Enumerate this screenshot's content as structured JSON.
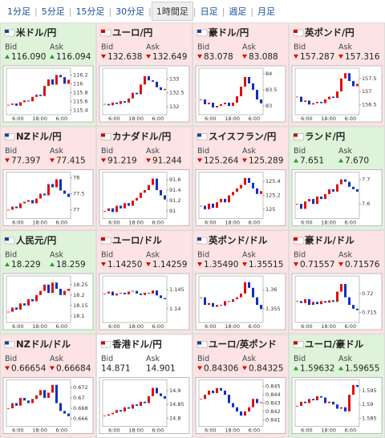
{
  "tabs": {
    "items": [
      "1分足",
      "5分足",
      "15分足",
      "30分足",
      "1時間足",
      "日足",
      "週足",
      "月足"
    ],
    "active": 4
  },
  "labels": {
    "bid": "Bid",
    "ask": "Ask"
  },
  "x_labels": [
    "6:00",
    "18:00",
    "6:00"
  ],
  "cards": [
    {
      "name": "米ドル/円",
      "bid": "116.090",
      "ask": "116.094",
      "dir": "up",
      "ylim": [
        115.35,
        116.3
      ],
      "yticks": [
        115.4,
        115.6,
        115.8,
        116,
        116.2
      ],
      "closes": [
        115.52,
        115.55,
        115.5,
        115.58,
        115.62,
        115.6,
        115.7,
        115.75,
        115.72,
        115.95,
        116.1,
        115.98,
        116.2,
        116.15,
        116.0,
        116.09
      ]
    },
    {
      "name": "ユーロ/円",
      "bid": "132.638",
      "ask": "132.649",
      "dir": "down",
      "ylim": [
        131.8,
        133.3
      ],
      "yticks": [
        132,
        132.5,
        133
      ],
      "closes": [
        132.1,
        132.05,
        132.15,
        132.1,
        132.2,
        132.15,
        132.3,
        132.5,
        132.45,
        132.8,
        133.1,
        132.95,
        132.9,
        132.7,
        132.6,
        132.64
      ]
    },
    {
      "name": "豪ドル/円",
      "bid": "83.078",
      "ask": "83.088",
      "dir": "down",
      "ylim": [
        82.8,
        84.1
      ],
      "yticks": [
        83,
        83.5,
        84
      ],
      "closes": [
        83.2,
        83.05,
        83.1,
        82.95,
        83.0,
        83.05,
        83.1,
        83.0,
        83.1,
        83.3,
        83.6,
        83.9,
        83.7,
        83.5,
        83.2,
        83.08
      ]
    },
    {
      "name": "英ポンド/円",
      "bid": "157.287",
      "ask": "157.316",
      "dir": "down",
      "ylim": [
        156.2,
        157.8
      ],
      "yticks": [
        156.5,
        157,
        157.5
      ],
      "closes": [
        156.8,
        156.6,
        156.65,
        156.5,
        156.55,
        156.6,
        156.55,
        156.7,
        156.8,
        156.75,
        157.0,
        157.5,
        157.7,
        157.4,
        157.2,
        157.29
      ]
    },
    {
      "name": "NZドル/円",
      "bid": "77.397",
      "ask": "77.415",
      "dir": "down",
      "ylim": [
        76.8,
        78.1
      ],
      "yticks": [
        77,
        77.5,
        78
      ],
      "closes": [
        77.0,
        77.1,
        77.05,
        77.2,
        77.25,
        77.3,
        77.2,
        77.35,
        77.5,
        77.45,
        77.8,
        77.7,
        77.95,
        77.6,
        77.5,
        77.4
      ]
    },
    {
      "name": "カナダドル/円",
      "bid": "91.219",
      "ask": "91.244",
      "dir": "down",
      "ylim": [
        90.9,
        91.7
      ],
      "yticks": [
        91,
        91.2,
        91.4,
        91.6
      ],
      "closes": [
        91.0,
        91.05,
        90.98,
        91.1,
        91.05,
        91.15,
        91.1,
        91.2,
        91.25,
        91.35,
        91.4,
        91.5,
        91.62,
        91.4,
        91.3,
        91.22
      ]
    },
    {
      "name": "スイスフラン/円",
      "bid": "125.264",
      "ask": "125.289",
      "dir": "down",
      "ylim": [
        124.9,
        125.5
      ],
      "yticks": [
        125,
        125.2,
        125.4
      ],
      "closes": [
        125.05,
        125.0,
        125.08,
        125.02,
        125.1,
        125.15,
        125.1,
        125.2,
        125.25,
        125.3,
        125.35,
        125.45,
        125.38,
        125.3,
        125.22,
        125.26
      ]
    },
    {
      "name": "ランド/円",
      "bid": "7.651",
      "ask": "7.670",
      "dir": "up",
      "ylim": [
        7.55,
        7.72
      ],
      "yticks": [
        7.6,
        7.7
      ],
      "closes": [
        7.6,
        7.58,
        7.61,
        7.62,
        7.6,
        7.63,
        7.62,
        7.64,
        7.66,
        7.65,
        7.68,
        7.7,
        7.69,
        7.67,
        7.66,
        7.65
      ]
    },
    {
      "name": "人民元/円",
      "bid": "18.229",
      "ask": "18.259",
      "dir": "up",
      "ylim": [
        18.08,
        18.28
      ],
      "yticks": [
        18.1,
        18.15,
        18.2,
        18.25
      ],
      "closes": [
        18.12,
        18.14,
        18.13,
        18.16,
        18.15,
        18.18,
        18.17,
        18.2,
        18.22,
        18.25,
        18.21,
        18.26,
        18.23,
        18.2,
        18.22,
        18.23
      ]
    },
    {
      "name": "ユーロ/ドル",
      "bid": "1.14250",
      "ask": "1.14259",
      "dir": "down",
      "ylim": [
        1.137,
        1.148
      ],
      "yticks": [
        1.14,
        1.145
      ],
      "closes": [
        1.144,
        1.1445,
        1.1435,
        1.144,
        1.1442,
        1.1438,
        1.1445,
        1.1447,
        1.144,
        1.1436,
        1.1442,
        1.144,
        1.1448,
        1.1435,
        1.1428,
        1.1425
      ]
    },
    {
      "name": "英ポンド/ドル",
      "bid": "1.35490",
      "ask": "1.35515",
      "dir": "down",
      "ylim": [
        1.352,
        1.363
      ],
      "yticks": [
        1.355,
        1.36
      ],
      "closes": [
        1.358,
        1.356,
        1.3565,
        1.3555,
        1.356,
        1.3558,
        1.357,
        1.3568,
        1.3575,
        1.358,
        1.359,
        1.362,
        1.3605,
        1.358,
        1.356,
        1.3549
      ]
    },
    {
      "name": "豪ドル/ドル",
      "bid": "0.71557",
      "ask": "0.71576",
      "dir": "down",
      "ylim": [
        0.713,
        0.724
      ],
      "yticks": [
        0.715,
        0.72
      ],
      "closes": [
        0.718,
        0.7175,
        0.7185,
        0.717,
        0.7178,
        0.7172,
        0.718,
        0.7176,
        0.7182,
        0.7178,
        0.7205,
        0.7225,
        0.719,
        0.717,
        0.716,
        0.7156
      ]
    },
    {
      "name": "NZドル/ドル",
      "bid": "0.66654",
      "ask": "0.66684",
      "dir": "down",
      "ylim": [
        0.665,
        0.673
      ],
      "yticks": [
        0.666,
        0.668,
        0.67,
        0.672
      ],
      "closes": [
        0.668,
        0.669,
        0.6685,
        0.67,
        0.6695,
        0.669,
        0.6698,
        0.6705,
        0.6715,
        0.67,
        0.671,
        0.6725,
        0.669,
        0.6675,
        0.667,
        0.6665
      ]
    },
    {
      "name": "香港ドル/円",
      "bid": "14.871",
      "ask": "14.901",
      "dir": "none",
      "ylim": [
        14.78,
        14.93
      ],
      "yticks": [
        14.8,
        14.85,
        14.9
      ],
      "closes": [
        14.81,
        14.815,
        14.82,
        14.83,
        14.825,
        14.84,
        14.835,
        14.85,
        14.845,
        14.86,
        14.855,
        14.88,
        14.91,
        14.89,
        14.88,
        14.871
      ]
    },
    {
      "name": "ユーロ/英ポンド",
      "bid": "0.84306",
      "ask": "0.84325",
      "dir": "down",
      "ylim": [
        0.8405,
        0.8455
      ],
      "yticks": [
        0.841,
        0.842,
        0.843,
        0.844,
        0.845
      ],
      "closes": [
        0.8435,
        0.844,
        0.8445,
        0.8442,
        0.8448,
        0.8445,
        0.844,
        0.843,
        0.8425,
        0.842,
        0.8415,
        0.842,
        0.8425,
        0.8435,
        0.843,
        0.8431
      ]
    },
    {
      "name": "ユーロ/豪ドル",
      "bid": "1.59632",
      "ask": "1.59655",
      "dir": "up",
      "ylim": [
        1.583,
        1.598
      ],
      "yticks": [
        1.585,
        1.59,
        1.595
      ],
      "closes": [
        1.5895,
        1.591,
        1.5905,
        1.592,
        1.5915,
        1.593,
        1.5925,
        1.5905,
        1.591,
        1.59,
        1.5885,
        1.589,
        1.5875,
        1.5935,
        1.597,
        1.5963
      ]
    }
  ]
}
